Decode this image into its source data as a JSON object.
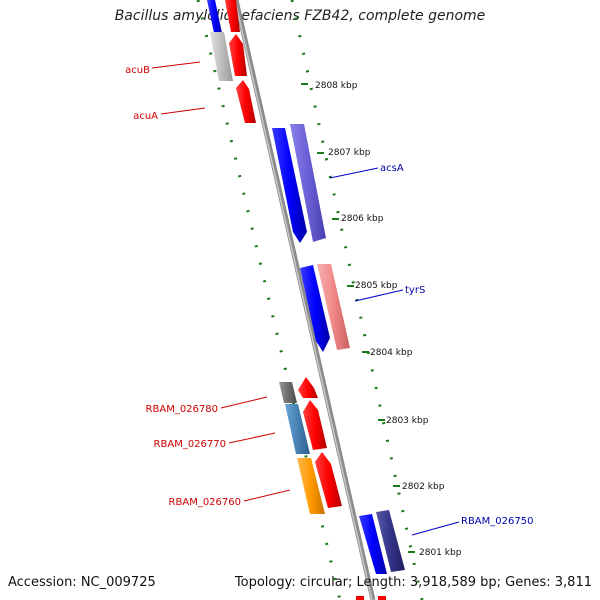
{
  "title": "Bacillus amyloliquefaciens FZB42, complete genome",
  "footer": {
    "accession": "Accession: NC_009725",
    "topology": "Topology: circular; Length: 3,918,589 bp; Genes: 3,811"
  },
  "ticks": [
    "2808 kbp",
    "2807 kbp",
    "2806 kbp",
    "2805 kbp",
    "2804 kbp",
    "2803 kbp",
    "2802 kbp",
    "2801 kbp"
  ],
  "genes": [
    {
      "label": "acuB",
      "color": "#cc0000"
    },
    {
      "label": "acuA",
      "color": "#cc0000"
    },
    {
      "label": "acsA",
      "color": "#0000aa"
    },
    {
      "label": "tyrS",
      "color": "#0000aa"
    },
    {
      "label": "RBAM_026780",
      "color": "#cc0000"
    },
    {
      "label": "RBAM_026770",
      "color": "#cc0000"
    },
    {
      "label": "RBAM_026760",
      "color": "#cc0000"
    },
    {
      "label": "RBAM_026750",
      "color": "#0000aa"
    }
  ],
  "colors": {
    "backbone": "#8c8c8c",
    "dots": "#1a7a1a"
  }
}
